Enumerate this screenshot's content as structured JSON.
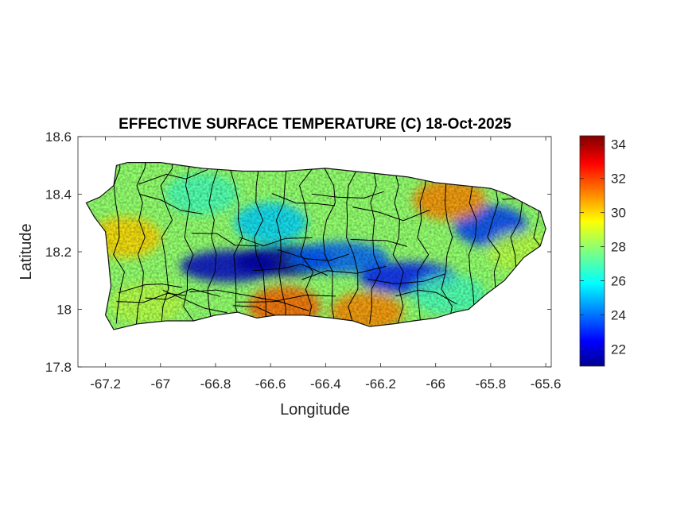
{
  "chart_data": {
    "type": "heatmap",
    "title": "EFFECTIVE SURFACE TEMPERATURE (C) 18-Oct-2025",
    "xlabel": "Longitude",
    "ylabel": "Latitude",
    "xlim": [
      -67.3,
      -65.58
    ],
    "ylim": [
      17.8,
      18.6
    ],
    "xticks": [
      -67.2,
      -67,
      -66.8,
      -66.6,
      -66.4,
      -66.2,
      -66,
      -65.8,
      -65.6
    ],
    "xtick_labels": [
      "-67.2",
      "-67",
      "-66.8",
      "-66.6",
      "-66.4",
      "-66.2",
      "-66",
      "-65.8",
      "-65.6"
    ],
    "yticks": [
      17.8,
      18,
      18.2,
      18.4,
      18.6
    ],
    "ytick_labels": [
      "17.8",
      "18",
      "18.2",
      "18.4",
      "18.6"
    ],
    "colorbar": {
      "colormap": "jet",
      "range": [
        21,
        34.5
      ],
      "ticks": [
        22,
        24,
        26,
        28,
        30,
        32,
        34
      ],
      "tick_labels": [
        "22",
        "24",
        "26",
        "28",
        "30",
        "32",
        "34"
      ],
      "position": "right"
    },
    "grid": false,
    "coastline": [
      [
        -67.27,
        18.37
      ],
      [
        -67.22,
        18.39
      ],
      [
        -67.17,
        18.43
      ],
      [
        -67.16,
        18.5
      ],
      [
        -67.12,
        18.51
      ],
      [
        -67.0,
        18.51
      ],
      [
        -66.85,
        18.49
      ],
      [
        -66.7,
        18.48
      ],
      [
        -66.55,
        18.48
      ],
      [
        -66.4,
        18.49
      ],
      [
        -66.3,
        18.48
      ],
      [
        -66.2,
        18.47
      ],
      [
        -66.1,
        18.46
      ],
      [
        -66.0,
        18.44
      ],
      [
        -65.9,
        18.43
      ],
      [
        -65.8,
        18.42
      ],
      [
        -65.74,
        18.4
      ],
      [
        -65.66,
        18.36
      ],
      [
        -65.62,
        18.34
      ],
      [
        -65.6,
        18.28
      ],
      [
        -65.62,
        18.22
      ],
      [
        -65.68,
        18.18
      ],
      [
        -65.75,
        18.1
      ],
      [
        -65.82,
        18.05
      ],
      [
        -65.88,
        18.0
      ],
      [
        -65.93,
        17.99
      ],
      [
        -66.0,
        17.97
      ],
      [
        -66.08,
        17.96
      ],
      [
        -66.15,
        17.95
      ],
      [
        -66.24,
        17.94
      ],
      [
        -66.3,
        17.96
      ],
      [
        -66.38,
        17.97
      ],
      [
        -66.48,
        17.98
      ],
      [
        -66.58,
        17.98
      ],
      [
        -66.65,
        17.97
      ],
      [
        -66.72,
        17.99
      ],
      [
        -66.8,
        17.98
      ],
      [
        -66.88,
        17.96
      ],
      [
        -66.98,
        17.96
      ],
      [
        -67.08,
        17.95
      ],
      [
        -67.17,
        17.93
      ],
      [
        -67.2,
        17.98
      ],
      [
        -67.18,
        18.08
      ],
      [
        -67.19,
        18.18
      ],
      [
        -67.2,
        18.27
      ],
      [
        -67.24,
        18.32
      ],
      [
        -67.27,
        18.37
      ]
    ],
    "temperature_features": [
      {
        "feature": "central mountain cold band",
        "lon": -66.75,
        "lat": 18.15,
        "value": 22
      },
      {
        "feature": "central mountain cold band",
        "lon": -66.55,
        "lat": 18.17,
        "value": 21.5
      },
      {
        "feature": "central mountain cold band",
        "lon": -66.35,
        "lat": 18.18,
        "value": 24
      },
      {
        "feature": "central mountain cold band",
        "lon": -66.1,
        "lat": 18.11,
        "value": 23
      },
      {
        "feature": "east mountain cold spot",
        "lon": -65.8,
        "lat": 18.29,
        "value": 23.5
      },
      {
        "feature": "northwest",
        "lon": -66.85,
        "lat": 18.4,
        "value": 27
      },
      {
        "feature": "north coast",
        "lon": -66.4,
        "lat": 18.42,
        "value": 28
      },
      {
        "feature": "north interior",
        "lon": -66.6,
        "lat": 18.3,
        "value": 25.5
      },
      {
        "feature": "west coast",
        "lon": -67.13,
        "lat": 18.25,
        "value": 30
      },
      {
        "feature": "northeast warm area",
        "lon": -65.95,
        "lat": 18.38,
        "value": 31
      },
      {
        "feature": "south coast warm area",
        "lon": -66.55,
        "lat": 18.01,
        "value": 31.5
      },
      {
        "feature": "south coast",
        "lon": -66.25,
        "lat": 17.99,
        "value": 31
      },
      {
        "feature": "southwest",
        "lon": -67.05,
        "lat": 18.02,
        "value": 28.5
      },
      {
        "feature": "east coast",
        "lon": -65.68,
        "lat": 18.2,
        "value": 28.5
      },
      {
        "feature": "southeast",
        "lon": -65.95,
        "lat": 18.05,
        "value": 27
      }
    ]
  }
}
